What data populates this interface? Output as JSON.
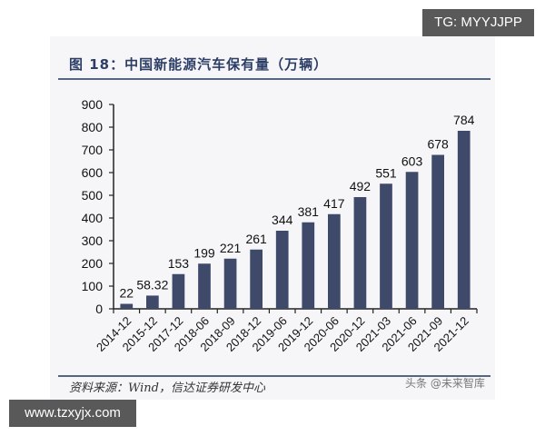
{
  "watermarks": {
    "top_right": "TG: MYYJJPP",
    "bottom_left": "www.tzxyjx.com",
    "bottom_right": "头条 @未来智库"
  },
  "figure": {
    "title": "图 18：中国新能源汽车保有量（万辆）",
    "source": "资料来源：Wind，信达证券研发中心"
  },
  "colors": {
    "bar": "#3f4a6b",
    "title": "#2c3e66",
    "rule": "#55667f"
  },
  "chart_data": {
    "type": "bar",
    "title": "中国新能源汽车保有量（万辆）",
    "xlabel": "",
    "ylabel": "万辆",
    "ylim": [
      0,
      900
    ],
    "yticks": [
      0,
      100,
      200,
      300,
      400,
      500,
      600,
      700,
      800,
      900
    ],
    "grid": false,
    "legend": null,
    "categories": [
      "2014-12",
      "2015-12",
      "2017-12",
      "2018-06",
      "2018-09",
      "2018-12",
      "2019-06",
      "2019-12",
      "2020-06",
      "2020-12",
      "2021-03",
      "2021-06",
      "2021-09",
      "2021-12"
    ],
    "values": [
      22,
      58.32,
      153,
      199,
      221,
      261,
      344,
      381,
      417,
      492,
      551,
      603,
      678,
      784
    ],
    "value_labels": [
      "22",
      "58.32",
      "153",
      "199",
      "221",
      "261",
      "344",
      "381",
      "417",
      "492",
      "551",
      "603",
      "678",
      "784"
    ]
  }
}
